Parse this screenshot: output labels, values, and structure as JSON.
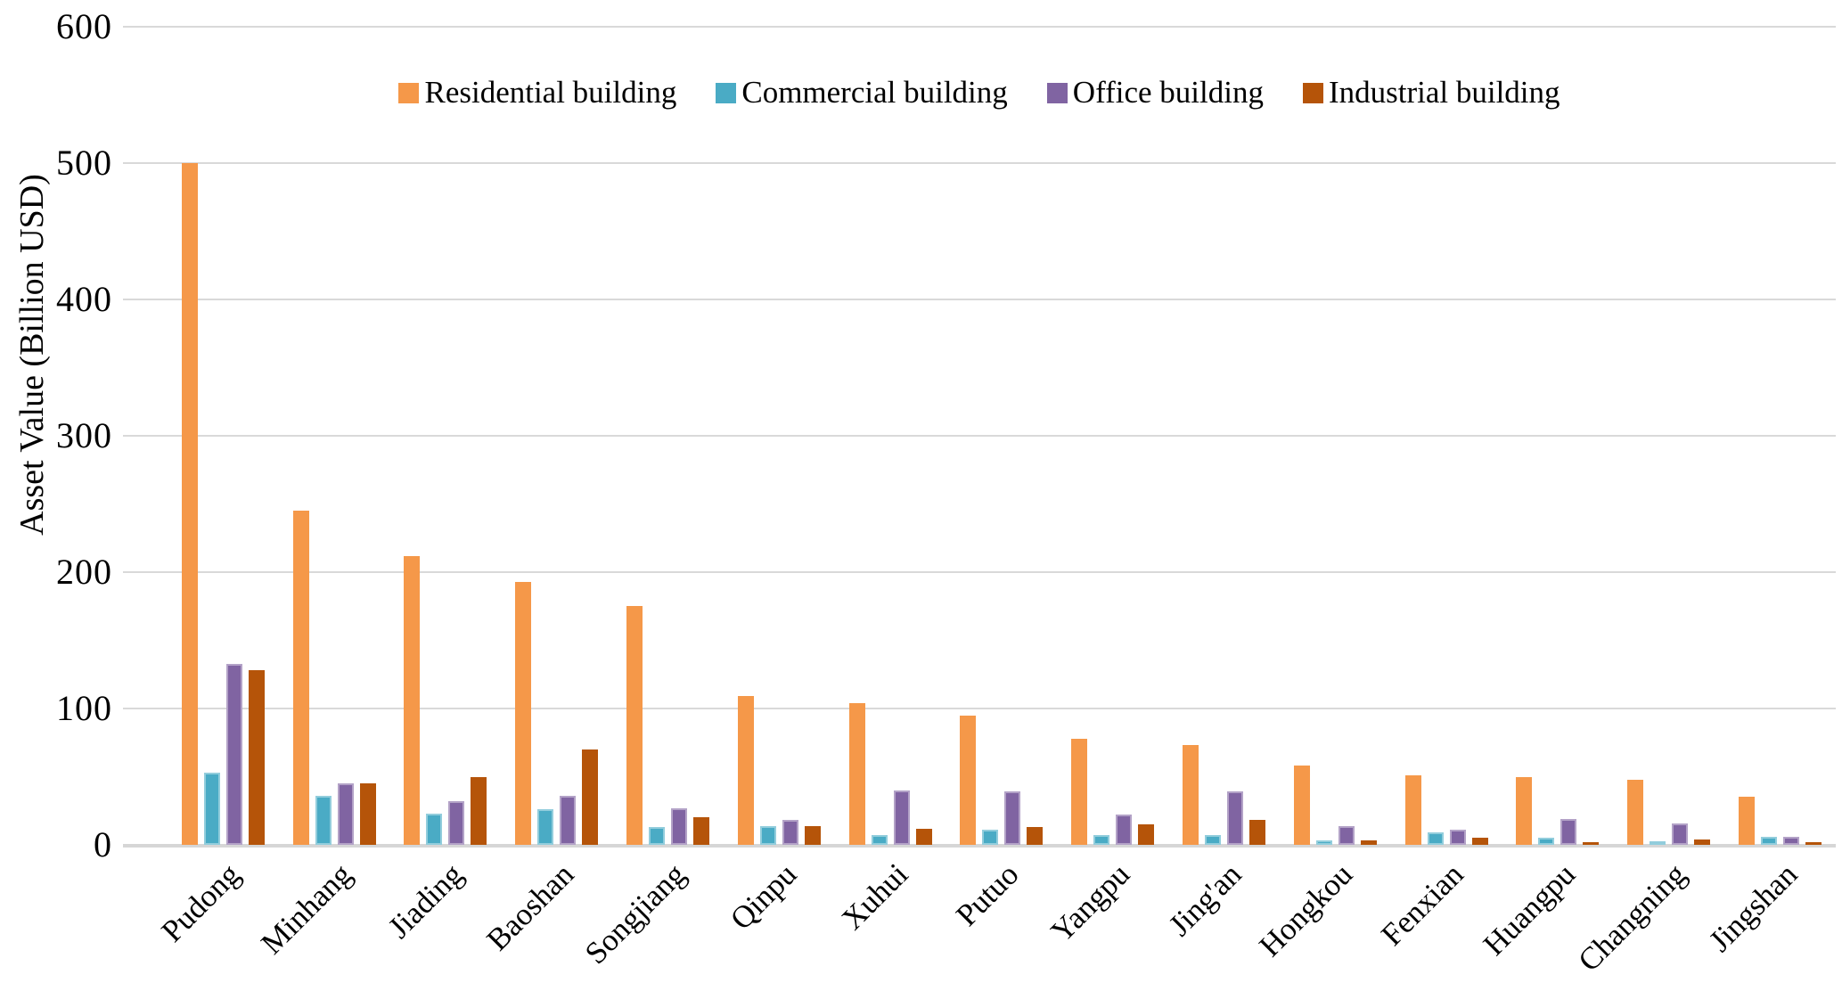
{
  "chart_data": {
    "type": "bar",
    "title": "",
    "xlabel": "",
    "ylabel": "Asset Value (Billion USD)",
    "ylim": [
      0,
      600
    ],
    "yticks": [
      0,
      100,
      200,
      300,
      400,
      500,
      600
    ],
    "grid": true,
    "grid_color": "#D9D9D9",
    "legend_position": "top-center",
    "background_color": "#FFFFFF",
    "text_color": "#000000",
    "categories": [
      "Pudong",
      "Minhang",
      "Jiading",
      "Baoshan",
      "Songjiang",
      "Qinpu",
      "Xuhui",
      "Putuo",
      "Yangpu",
      "Jing'an",
      "Hongkou",
      "Fenxian",
      "Huangpu",
      "Changning",
      "Jingshan"
    ],
    "series": [
      {
        "name": "Residential building",
        "color": "#F59849",
        "border": "#F59849",
        "values": [
          500,
          245,
          212,
          193,
          175,
          109,
          104,
          95,
          78,
          73,
          58,
          51,
          50,
          48,
          35
        ]
      },
      {
        "name": "Commercial building",
        "color": "#4AABC5",
        "border": "#92CDDC",
        "values": [
          53,
          36,
          23,
          26,
          13,
          14,
          7,
          11,
          7,
          7,
          3,
          9,
          5,
          2,
          6
        ]
      },
      {
        "name": "Office building",
        "color": "#8064A2",
        "border": "#B3A2C7",
        "values": [
          133,
          45,
          32,
          36,
          27,
          18,
          40,
          39,
          22,
          39,
          14,
          11,
          19,
          16,
          6
        ]
      },
      {
        "name": "Industrial building",
        "color": "#B55409",
        "border": "#B55409",
        "values": [
          128,
          45,
          50,
          70,
          20,
          14,
          12,
          13,
          15,
          18,
          3,
          5,
          2,
          4,
          2
        ]
      }
    ]
  }
}
